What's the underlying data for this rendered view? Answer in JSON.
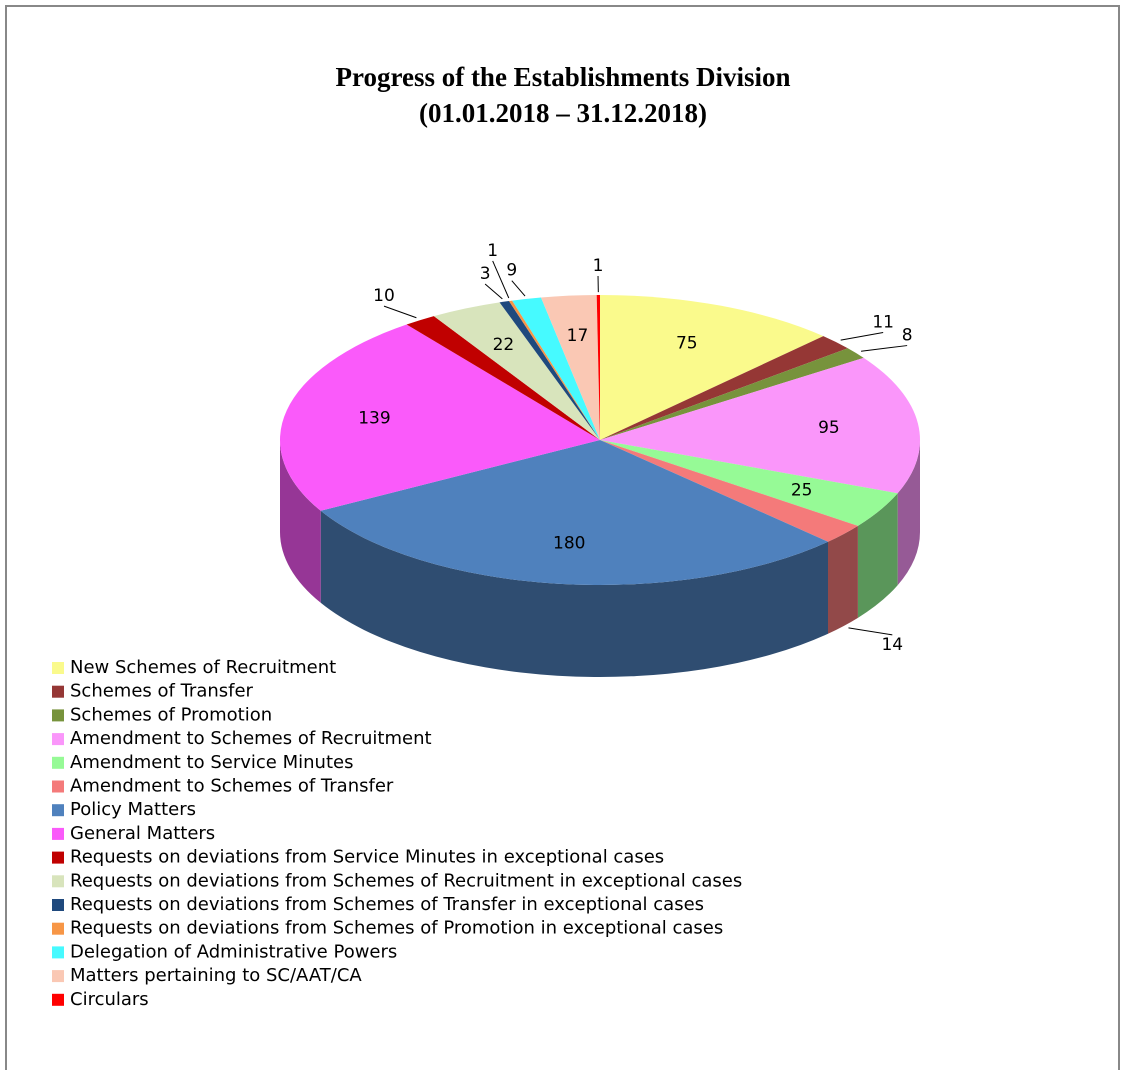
{
  "chart_data": {
    "type": "pie3d",
    "title": "Progress of the Establishments Division",
    "subtitle": "(01.01.2018 – 31.12.2018)",
    "categories": [
      "New Schemes of Recruitment",
      "Schemes of Transfer",
      "Schemes of Promotion",
      "Amendment to Schemes of Recruitment",
      "Amendment to Service Minutes",
      "Amendment to Schemes of Transfer",
      "Policy Matters",
      "General Matters",
      "Requests on deviations from Service Minutes in exceptional cases",
      "Requests on deviations from Schemes of Recruitment in exceptional cases",
      "Requests on deviations from Schemes of Transfer in exceptional cases",
      "Requests on deviations from Schemes of Promotion in exceptional cases",
      "Delegation of Administrative Powers",
      "Matters pertaining to SC/AAT/CA",
      "Circulars"
    ],
    "values": [
      75,
      11,
      8,
      95,
      25,
      14,
      180,
      139,
      10,
      22,
      3,
      1,
      9,
      17,
      1
    ],
    "colors": [
      "#fafa8c",
      "#953735",
      "#77933c",
      "#fa96fa",
      "#96fa96",
      "#f47a7a",
      "#4f81bd",
      "#fa5afa",
      "#c00000",
      "#d8e4bc",
      "#1f497d",
      "#f79646",
      "#46faff",
      "#fac8b4",
      "#ff0000"
    ],
    "legend": "bottom-left"
  }
}
